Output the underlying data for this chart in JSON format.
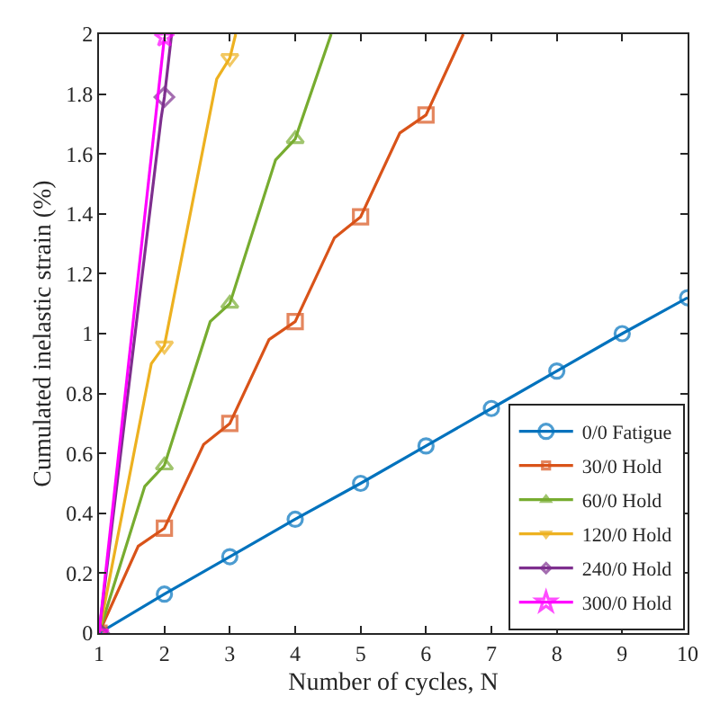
{
  "chart_data": {
    "type": "line",
    "xlabel": "Number of cycles, N",
    "ylabel": "Cumulated inelastic strain (%)",
    "xlim": [
      1,
      10
    ],
    "xticks": [
      1,
      2,
      3,
      4,
      5,
      6,
      7,
      8,
      9,
      10
    ],
    "ylim": [
      0,
      2
    ],
    "yticks": [
      0,
      0.2,
      0.4,
      0.6,
      0.8,
      1,
      1.2,
      1.4,
      1.6,
      1.8,
      2
    ],
    "legend": "bottom right",
    "line_style": "solid",
    "series": [
      {
        "name": "0/0 Fatigue",
        "color": "#0072bd",
        "marker": "circle",
        "x": [
          1,
          2,
          3,
          4,
          5,
          6,
          7,
          8,
          9,
          10
        ],
        "values": [
          0,
          0.13,
          0.255,
          0.38,
          0.5,
          0.625,
          0.75,
          0.875,
          1.0,
          1.12
        ]
      },
      {
        "name": "30/0 Hold",
        "color": "#d95319",
        "marker": "square",
        "x": [
          1,
          1.6,
          2,
          2.6,
          3,
          3.6,
          4,
          4.6,
          5,
          5.6,
          6,
          6.57
        ],
        "values": [
          0,
          0.29,
          0.35,
          0.63,
          0.7,
          0.98,
          1.04,
          1.32,
          1.39,
          1.67,
          1.73,
          2
        ]
      },
      {
        "name": "60/0 Hold",
        "color": "#77ac30",
        "marker": "triangle",
        "x": [
          1,
          1.7,
          2,
          2.7,
          3,
          3.7,
          4,
          4.55
        ],
        "values": [
          0,
          0.49,
          0.56,
          1.04,
          1.1,
          1.58,
          1.65,
          2
        ]
      },
      {
        "name": "120/0 Hold",
        "color": "#edb120",
        "marker": "triangle-down",
        "x": [
          1,
          1.8,
          2,
          2.8,
          3,
          3.09
        ],
        "values": [
          0,
          0.9,
          0.96,
          1.85,
          1.92,
          2
        ]
      },
      {
        "name": "240/0 Hold",
        "color": "#7e2f8e",
        "marker": "diamond",
        "x": [
          1,
          1.95,
          2,
          2.11
        ],
        "values": [
          0,
          1.72,
          1.79,
          2
        ]
      },
      {
        "name": "300/0 Hold",
        "color": "#ff00ff",
        "marker": "star",
        "x": [
          1,
          2
        ],
        "values": [
          0,
          1.99
        ]
      }
    ]
  }
}
